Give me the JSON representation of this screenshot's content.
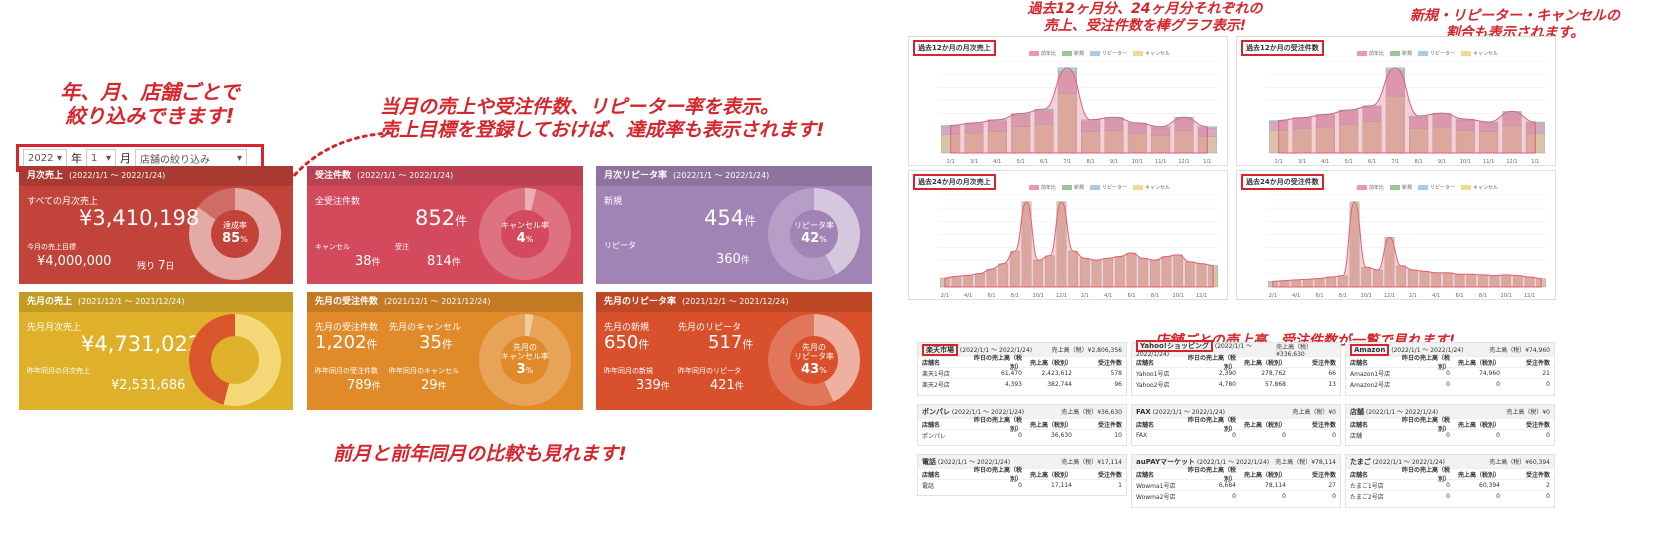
{
  "notes": {
    "filter": "年、月、店舗ごとで\n絞り込みできます!",
    "kpi": "当月の売上や受注件数、リピーター率を表示。\n売上目標を登録しておけば、達成率も表示されます!",
    "compare": "前月と前年同月の比較も見れます!",
    "charts": "過去12ヶ月分、24ヶ月分それぞれの\n売上、受注件数を棒グラフ表示!",
    "ratio": "新規・リピーター・キャンセルの\n割合も表示されます。",
    "stores": "店舗ごとの売上高、受注件数が一覧で見れます!"
  },
  "filter": {
    "year": "2022",
    "year_unit": "年",
    "month": "1",
    "month_unit": "月",
    "store": "店舗の絞り込み"
  },
  "colors": {
    "red": "#c1433a",
    "pink": "#d34a5d",
    "purple": "#a283b6",
    "yellow": "#dfb12a",
    "orange": "#e08a2a",
    "deeporange": "#d9512c",
    "highlight": "#d4262c"
  },
  "cards": [
    {
      "title": "月次売上",
      "period": "(2022/1/1 〜 2022/1/24)",
      "label1": "すべての月次売上",
      "value1": "¥3,410,198",
      "label2": "今月の売上目標",
      "value2": "¥4,000,000",
      "remain_label": "残り",
      "remain_val": "7",
      "remain_unit": "日",
      "donut_label": "達成率",
      "donut_value": "85",
      "donut_unit": "%",
      "progress": 0.85
    },
    {
      "title": "受注件数",
      "period": "(2022/1/1 〜 2022/1/24)",
      "label1": "全受注件数",
      "value1": "852",
      "unit": "件",
      "label2": "キャンセル",
      "value2": "38",
      "label3": "受注",
      "value3": "814",
      "donut_label": "キャンセル率",
      "donut_value": "4",
      "donut_unit": "%",
      "progress": 0.04
    },
    {
      "title": "月次リピータ率",
      "period": "(2022/1/1 〜 2022/1/24)",
      "label1": "新規",
      "value1": "454",
      "unit": "件",
      "label2": "リピータ",
      "value2": "360",
      "donut_label": "リピータ率",
      "donut_value": "42",
      "donut_unit": "%",
      "progress": 0.42
    },
    {
      "title": "先月の売上",
      "period": "(2021/12/1 〜 2021/12/24)",
      "label1": "先月月次売上",
      "value1": "¥4,731,022",
      "label2": "昨年同月の月次売上",
      "value2": "¥2,531,686",
      "progress": 0.54
    },
    {
      "title": "先月の受注件数",
      "period": "(2021/12/1 〜 2021/12/24)",
      "label1": "先月の受注件数",
      "value1": "1,202",
      "label2": "先月のキャンセル",
      "value2": "35",
      "label3": "昨年同月の受注件数",
      "value3": "789",
      "label4": "昨年同月のキャンセル",
      "value4": "29",
      "unit": "件",
      "donut_label": "先月の\nキャンセル率",
      "donut_value": "3",
      "donut_unit": "%",
      "progress": 0.03
    },
    {
      "title": "先月のリピータ率",
      "period": "(2021/12/1 〜 2021/12/24)",
      "label1": "先月の新規",
      "value1": "650",
      "label2": "先月のリピータ",
      "value2": "517",
      "label3": "昨年同月の新規",
      "value3": "339",
      "label4": "昨年同月のリピータ",
      "value4": "421",
      "unit": "件",
      "donut_label": "先月の\nリピータ率",
      "donut_value": "43",
      "donut_unit": "%",
      "progress": 0.43
    }
  ],
  "chart_data": [
    {
      "type": "bar",
      "title": "過去12か月の月次売上",
      "legend": [
        "前年比",
        "新規",
        "リピーター",
        "キャンセル"
      ],
      "categories": [
        "2/1",
        "3/1",
        "4/1",
        "5/1",
        "6/1",
        "7/1",
        "8/1",
        "9/1",
        "10/1",
        "11/1",
        "12/1",
        "1/1"
      ],
      "series": [
        {
          "name": "新規",
          "values": [
            3.0,
            3.2,
            3.4,
            4.2,
            4.6,
            9.5,
            3.4,
            3.6,
            3.2,
            2.8,
            3.6,
            2.6
          ]
        },
        {
          "name": "リピーター",
          "values": [
            1.2,
            1.4,
            1.6,
            1.8,
            2.0,
            3.5,
            1.6,
            1.8,
            1.4,
            1.2,
            1.8,
            1.4
          ]
        },
        {
          "name": "キャンセル",
          "values": [
            0.2,
            0.2,
            0.3,
            0.3,
            0.4,
            0.6,
            0.3,
            0.3,
            0.2,
            0.2,
            0.3,
            0.2
          ]
        }
      ],
      "ylim": [
        0,
        14000000
      ]
    },
    {
      "type": "bar",
      "title": "過去12か月の受注件数",
      "legend": [
        "前年比",
        "新規",
        "リピーター",
        "キャンセル"
      ],
      "categories": [
        "2/1",
        "3/1",
        "4/1",
        "5/1",
        "6/1",
        "7/1",
        "8/1",
        "9/1",
        "10/1",
        "11/1",
        "12/1",
        "1/1"
      ],
      "series": [
        {
          "name": "新規",
          "values": [
            800,
            850,
            900,
            1000,
            1100,
            2000,
            850,
            900,
            800,
            750,
            950,
            700
          ]
        },
        {
          "name": "リピーター",
          "values": [
            300,
            350,
            400,
            450,
            500,
            900,
            400,
            450,
            350,
            300,
            450,
            350
          ]
        },
        {
          "name": "キャンセル",
          "values": [
            40,
            40,
            50,
            60,
            60,
            90,
            50,
            50,
            40,
            40,
            60,
            40
          ]
        }
      ],
      "ylim": [
        0,
        3500
      ]
    },
    {
      "type": "bar",
      "title": "過去24か月の月次売上",
      "legend": [
        "前年比",
        "新規",
        "リピーター",
        "キャンセル"
      ],
      "categories": [
        "2/1",
        "",
        "4/1",
        "",
        "6/1",
        "",
        "8/1",
        "",
        "10/1",
        "",
        "12/1",
        "",
        "2/1",
        "",
        "4/1",
        "",
        "6/1",
        "",
        "8/1",
        "",
        "10/1",
        "",
        "12/1",
        ""
      ],
      "series": [
        {
          "name": "新規",
          "values": [
            1.0,
            1.2,
            1.3,
            1.5,
            2.0,
            2.6,
            4.0,
            9.5,
            3.0,
            3.5,
            9.5,
            4.0,
            3.2,
            3.0,
            3.2,
            3.4,
            3.8,
            3.2,
            3.0,
            3.4,
            3.6,
            2.8,
            2.6,
            2.4
          ]
        }
      ],
      "ylim": [
        0,
        14000000
      ]
    },
    {
      "type": "bar",
      "title": "過去24か月の受注件数",
      "legend": [
        "前年比",
        "新規",
        "リピーター",
        "キャンセル"
      ],
      "categories": [
        "2/1",
        "",
        "4/1",
        "",
        "6/1",
        "",
        "8/1",
        "",
        "10/1",
        "",
        "12/1",
        "",
        "2/1",
        "",
        "4/1",
        "",
        "6/1",
        "",
        "8/1",
        "",
        "10/1",
        "",
        "12/1",
        ""
      ],
      "series": [
        {
          "name": "新規",
          "values": [
            400,
            450,
            500,
            550,
            600,
            700,
            800,
            6000,
            1400,
            1200,
            3500,
            1500,
            1200,
            1100,
            1000,
            1000,
            900,
            900,
            850,
            800,
            850,
            800,
            700,
            600
          ]
        }
      ],
      "ylim": [
        0,
        7000
      ]
    }
  ],
  "stores": [
    {
      "name": "楽天市場",
      "period": "(2022/1/1 〜 2022/1/24)",
      "total": "売上高（税）¥2,806,356",
      "highlight": true,
      "cols": [
        "店舗名",
        "昨日の売上高（税別）",
        "売上高（税別）",
        "受注件数"
      ],
      "rows": [
        [
          "楽天1号店",
          "61,470",
          "2,423,612",
          "578"
        ],
        [
          "楽天2号店",
          "4,393",
          "382,744",
          "96"
        ]
      ]
    },
    {
      "name": "Yahoo!ショッピング",
      "period": "(2022/1/1 〜 2022/1/24)",
      "total": "売上高（税）¥336,630",
      "highlight": true,
      "cols": [
        "店舗名",
        "昨日の売上高（税別）",
        "売上高（税別）",
        "受注件数"
      ],
      "rows": [
        [
          "Yahoo1号店",
          "2,390",
          "278,762",
          "66"
        ],
        [
          "Yahoo2号店",
          "4,780",
          "57,868",
          "13"
        ]
      ]
    },
    {
      "name": "Amazon",
      "period": "(2022/1/1 〜 2022/1/24)",
      "total": "売上高（税）¥74,960",
      "highlight": true,
      "cols": [
        "店舗名",
        "昨日の売上高（税別）",
        "売上高（税別）",
        "受注件数"
      ],
      "rows": [
        [
          "Amazon1号店",
          "0",
          "74,960",
          "21"
        ],
        [
          "Amazon2号店",
          "0",
          "0",
          "0"
        ]
      ]
    },
    {
      "name": "ポンパレ",
      "period": "(2022/1/1 〜 2022/1/24)",
      "total": "売上高（税）¥36,630",
      "highlight": false,
      "cols": [
        "店舗名",
        "昨日の売上高（税別）",
        "売上高（税別）",
        "受注件数"
      ],
      "rows": [
        [
          "ポンパレ",
          "0",
          "36,630",
          "10"
        ]
      ]
    },
    {
      "name": "FAX",
      "period": "(2022/1/1 〜 2022/1/24)",
      "total": "売上高（税）¥0",
      "highlight": false,
      "cols": [
        "店舗名",
        "昨日の売上高（税別）",
        "売上高（税別）",
        "受注件数"
      ],
      "rows": [
        [
          "FAX",
          "0",
          "0",
          "0"
        ]
      ]
    },
    {
      "name": "店舗",
      "period": "(2022/1/1 〜 2022/1/24)",
      "total": "売上高（税）¥0",
      "highlight": false,
      "cols": [
        "店舗名",
        "昨日の売上高（税別）",
        "売上高（税別）",
        "受注件数"
      ],
      "rows": [
        [
          "店舗",
          "0",
          "0",
          "0"
        ]
      ]
    },
    {
      "name": "電話",
      "period": "(2022/1/1 〜 2022/1/24)",
      "total": "売上高（税）¥17,114",
      "highlight": false,
      "cols": [
        "店舗名",
        "昨日の売上高（税別）",
        "売上高（税別）",
        "受注件数"
      ],
      "rows": [
        [
          "電話",
          "0",
          "17,114",
          "1"
        ]
      ]
    },
    {
      "name": "auPAYマーケット",
      "period": "(2022/1/1 〜 2022/1/24)",
      "total": "売上高（税）¥78,114",
      "highlight": false,
      "cols": [
        "店舗名",
        "昨日の売上高（税別）",
        "売上高（税別）",
        "受注件数"
      ],
      "rows": [
        [
          "Wowma1号店",
          "6,684",
          "78,114",
          "27"
        ],
        [
          "Wowma2号店",
          "0",
          "0",
          "0"
        ]
      ]
    },
    {
      "name": "たまご",
      "period": "(2022/1/1 〜 2022/1/24)",
      "total": "売上高（税）¥60,394",
      "highlight": false,
      "cols": [
        "店舗名",
        "昨日の売上高（税別）",
        "売上高（税別）",
        "受注件数"
      ],
      "rows": [
        [
          "たまご1号店",
          "0",
          "60,394",
          "2"
        ],
        [
          "たまご2号店",
          "0",
          "0",
          "0"
        ]
      ]
    }
  ]
}
